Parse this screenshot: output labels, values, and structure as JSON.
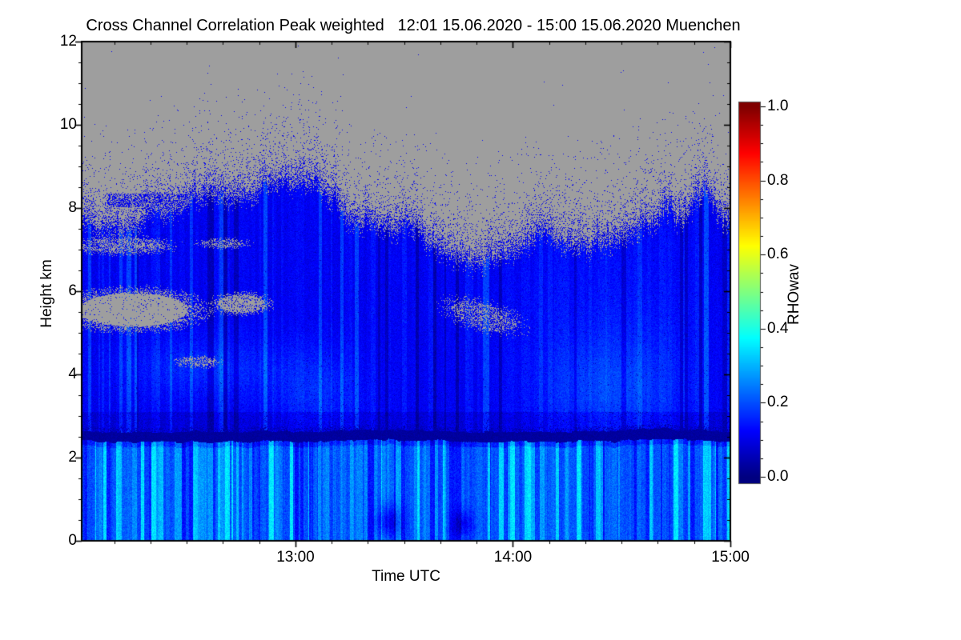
{
  "header": {
    "title_line": "Cross Channel Correlation Peak weighted   12:01 15.06.2020 - 15:00 15.06.2020 Muenchen"
  },
  "chart_data": {
    "type": "heatmap",
    "title": "Cross Channel Correlation Peak weighted",
    "time_range": "12:01 15.06.2020 - 15:00 15.06.2020",
    "location": "Muenchen",
    "xlabel": "Time UTC",
    "ylabel": "Height km",
    "x_start": "12:01",
    "x_end": "15:00",
    "x_start_minute": 1,
    "x_end_minute": 180,
    "x_ticks": [
      {
        "minute": 60,
        "label": "13:00"
      },
      {
        "minute": 120,
        "label": "14:00"
      },
      {
        "minute": 180,
        "label": "15:00"
      }
    ],
    "x_minor_step_minutes": 10,
    "ylim": [
      0,
      12
    ],
    "y_ticks": [
      {
        "km": 0,
        "label": "0"
      },
      {
        "km": 2,
        "label": "2"
      },
      {
        "km": 4,
        "label": "4"
      },
      {
        "km": 6,
        "label": "6"
      },
      {
        "km": 8,
        "label": "8"
      },
      {
        "km": 10,
        "label": "10"
      },
      {
        "km": 12,
        "label": "12"
      }
    ],
    "y_minor_step_km": 0.5,
    "colorbar": {
      "label": "RHOwav",
      "min": 0.0,
      "max": 1.0,
      "colormap": "jet",
      "ticks": [
        {
          "v": 0.0,
          "label": "0.0"
        },
        {
          "v": 0.2,
          "label": "0.2"
        },
        {
          "v": 0.4,
          "label": "0.4"
        },
        {
          "v": 0.6,
          "label": "0.6"
        },
        {
          "v": 0.8,
          "label": "0.8"
        },
        {
          "v": 1.0,
          "label": "1.0"
        }
      ],
      "minor_step": 0.05
    },
    "no_data_color": "#9E9E9E",
    "features": {
      "render_seed": 1337,
      "cloud_top_profile": {
        "minutes": [
          1,
          20,
          40,
          55,
          70,
          85,
          100,
          110,
          120,
          130,
          140,
          150,
          160,
          168,
          174,
          180
        ],
        "km": [
          7.75,
          7.9,
          8.05,
          8.35,
          8.2,
          7.85,
          7.4,
          7.05,
          7.35,
          7.6,
          7.5,
          7.95,
          8.25,
          7.95,
          8.55,
          8.15
        ]
      },
      "speckle": {
        "near_amp": 0.55,
        "near_decay_km": 0.33,
        "far_amp": 0.055,
        "far_decay_km": 1.05,
        "rho_min": 0.085,
        "rho_spread": 0.05,
        "max_extent_km": 2.5
      },
      "edge_gray_mix": {
        "amp": 0.45,
        "decay_km": 0.15
      },
      "detached_streak": {
        "m0": 8,
        "m1": 70,
        "km0": 8.02,
        "km1": 8.35,
        "density": 0.55,
        "rho": 0.1
      },
      "gray_islands": [
        {
          "mc": 15,
          "rm": 19,
          "kc": 5.55,
          "rk": 0.5,
          "density": 0.95,
          "tilt": 0
        },
        {
          "mc": 45,
          "rm": 8,
          "kc": 5.7,
          "rk": 0.27,
          "density": 0.8,
          "tilt": 0
        },
        {
          "mc": 112,
          "rm": 11,
          "kc": 5.4,
          "rk": 0.38,
          "density": 0.45,
          "tilt": -0.022
        },
        {
          "mc": 12,
          "rm": 14,
          "kc": 7.1,
          "rk": 0.22,
          "density": 0.55,
          "tilt": 0
        },
        {
          "mc": 40,
          "rm": 7,
          "kc": 7.15,
          "rk": 0.13,
          "density": 0.5,
          "tilt": 0
        },
        {
          "mc": 33,
          "rm": 6,
          "kc": 4.3,
          "rk": 0.14,
          "density": 0.5,
          "tilt": 0
        }
      ],
      "dark_band": {
        "center_km": 2.53,
        "half_thickness_km": 0.105,
        "half_thickness_spread": 0.035,
        "rho": 0.015,
        "rho_spread": 0.03
      },
      "lower_layer": {
        "base_rho": 0.185,
        "p_bright": 0.13,
        "bright_rho": 0.31,
        "p_mid": 0.2,
        "mid_rho": 0.25,
        "p_dark": 0.12,
        "dark_rho": 0.135,
        "jitter": 0.07,
        "below_band_darken": 0.05
      },
      "mid_layer": {
        "base_rho": 0.115,
        "jitter": 0.055,
        "dark_speckle_p": 0.015,
        "sub_band_km": 3.1,
        "sub_band_darken": 0.025,
        "sub_band_speckle_p": 0.1
      },
      "bright_patches": [
        {
          "mc": 148,
          "kc": 3.6,
          "amp": 0.07,
          "sm": 14,
          "sk": 0.9
        },
        {
          "mc": 66,
          "kc": 3.6,
          "amp": 0.05,
          "sm": 9,
          "sk": 0.7
        },
        {
          "mc": 150,
          "kc": 5.6,
          "amp": 0.03,
          "sm": 18,
          "sk": 1.6
        },
        {
          "mc": 35,
          "kc": 4.15,
          "amp": 0.05,
          "sm": 16,
          "sk": 0.5
        }
      ],
      "dark_smudges": [
        {
          "mc": 86,
          "kc": 0.45,
          "amp": -0.12,
          "sm": 2.5,
          "sk": 0.28
        },
        {
          "mc": 106,
          "kc": 0.4,
          "amp": -0.1,
          "sm": 2,
          "sk": 0.22
        }
      ]
    }
  }
}
